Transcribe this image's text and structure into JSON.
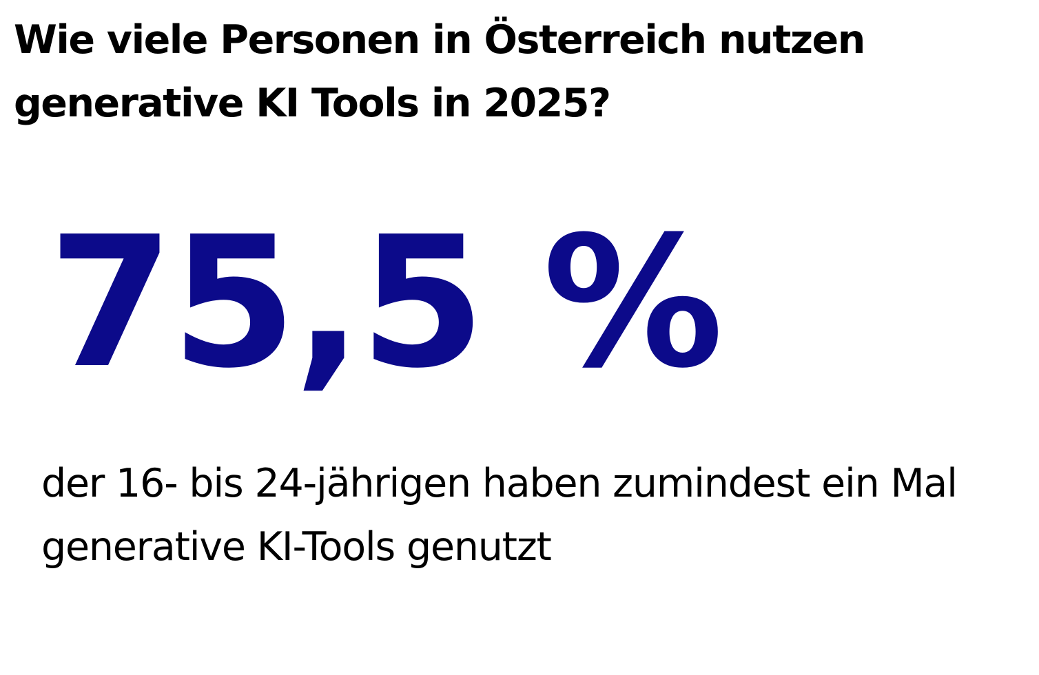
{
  "headline": "Wie viele Personen in Österreich nutzen generative KI Tools in 2025?",
  "stat": {
    "value": "75,5 %",
    "caption": "der 16- bis 24-jährigen haben zumindest ein Mal generative KI-Tools genutzt"
  },
  "colors": {
    "stat_value": "#0c0a8a",
    "text": "#000000",
    "background": "#ffffff"
  }
}
